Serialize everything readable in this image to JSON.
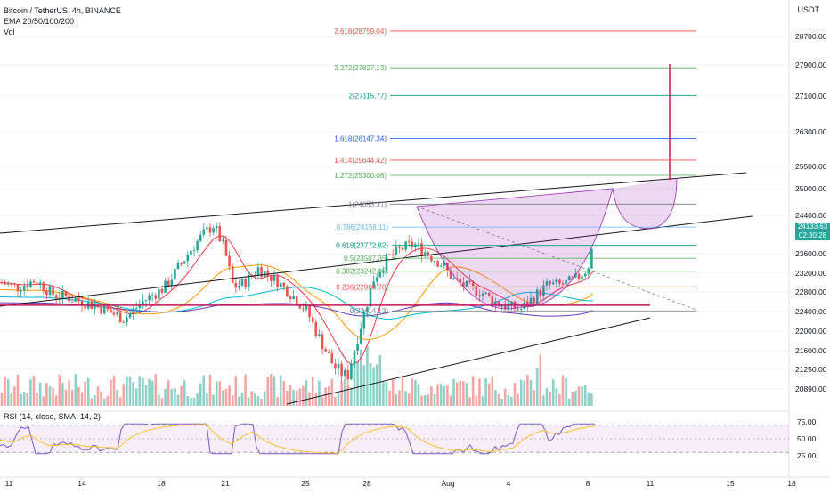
{
  "header": {
    "title": "Bitcoin / TetherUS, 4h, BINANCE",
    "ema": "EMA 20/50/100/200",
    "vol": "Vol",
    "currency": "USDT"
  },
  "last_price": {
    "price": "24133.63",
    "countdown": "02:30:28",
    "color": "#26a69a"
  },
  "rsi": {
    "label": "RSI (14, close, SMA, 14, 2)",
    "ticks": [
      "75.00",
      "50.00",
      "25.00"
    ]
  },
  "colors": {
    "up": "#26a69a",
    "down": "#ef5350",
    "vol_up": "#8ed1c8",
    "vol_down": "#f5a5a3",
    "pattern": "#9c27b0"
  },
  "chart_data": {
    "type": "candlestick",
    "x_ticks": [
      "11",
      "14",
      "18",
      "21",
      "25",
      "28",
      "Aug",
      "4",
      "8",
      "11",
      "15",
      "18"
    ],
    "y_ticks": [
      28700,
      27900,
      27100,
      26300,
      25500,
      25000,
      24400,
      23600,
      23200,
      22800,
      22400,
      22000,
      21600,
      21250,
      20890
    ],
    "ylim": [
      20700,
      29100
    ],
    "fib_levels": [
      {
        "label": "2.618(28759.04)",
        "value": 28759.04,
        "color": "#ef5350"
      },
      {
        "label": "2.272(27827.13)",
        "value": 27827.13,
        "color": "#4caf50"
      },
      {
        "label": "2(27115.77)",
        "value": 27115.77,
        "color": "#089981"
      },
      {
        "label": "1.618(26147.34)",
        "value": 26147.34,
        "color": "#2962ff"
      },
      {
        "label": "1.414(25644.42)",
        "value": 25644.42,
        "color": "#ef5350"
      },
      {
        "label": "1.272(25300.06)",
        "value": 25300.06,
        "color": "#4caf50"
      },
      {
        "label": "1(24653.31)",
        "value": 24653.31,
        "color": "#787b86"
      },
      {
        "label": "0.786(24156.11)",
        "value": 24156.11,
        "color": "#64b5f6"
      },
      {
        "label": "0.618(23772.82)",
        "value": 23772.82,
        "color": "#089981"
      },
      {
        "label": "0.5(23507.35)",
        "value": 23507.35,
        "color": "#4caf50"
      },
      {
        "label": "0.382(23242.05)",
        "value": 23242.05,
        "color": "#4caf50"
      },
      {
        "label": "0.236(22908.78)",
        "value": 22908.78,
        "color": "#ef5350"
      },
      {
        "label": "0(22414.13)",
        "value": 22414.13,
        "color": "#787b86"
      }
    ],
    "target": 27950,
    "support": 22530
  }
}
